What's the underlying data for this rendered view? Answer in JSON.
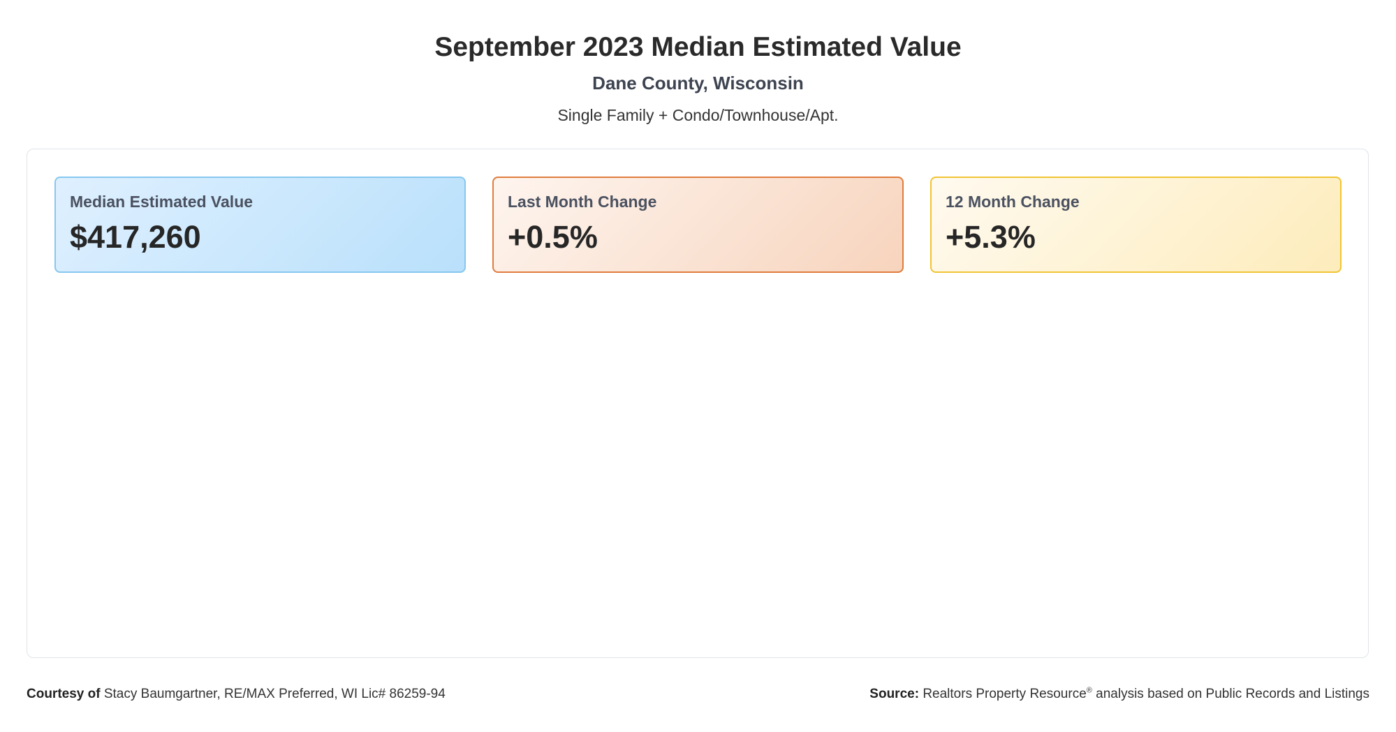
{
  "header": {
    "title": "September 2023 Median Estimated Value",
    "subtitle": "Dane County, Wisconsin",
    "property_types": "Single Family + Condo/Townhouse/Apt."
  },
  "cards": [
    {
      "label": "Median Estimated Value",
      "value": "$417,260",
      "accent": "#87c7ef"
    },
    {
      "label": "Last Month Change",
      "value": "+0.5%",
      "accent": "#e07c3d"
    },
    {
      "label": "12 Month Change",
      "value": "+5.3%",
      "accent": "#f1c433"
    }
  ],
  "footer": {
    "courtesy_label": "Courtesy of",
    "courtesy_text": "Stacy Baumgartner, RE/MAX Preferred, WI Lic# 86259-94",
    "source_label": "Source:",
    "source_text_1": "Realtors Property Resource",
    "source_sup": "®",
    "source_text_2": "analysis based on Public Records and Listings"
  }
}
